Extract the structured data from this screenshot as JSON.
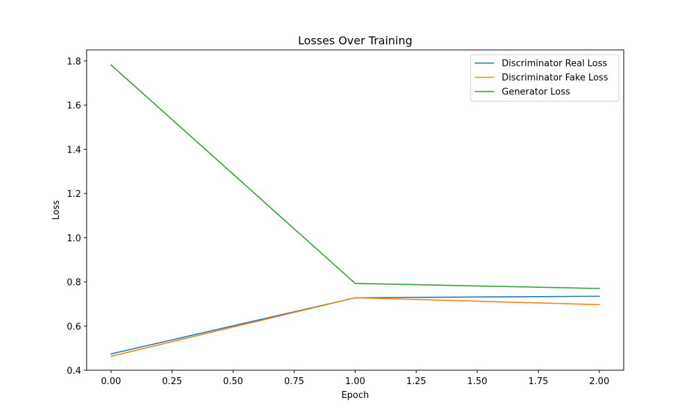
{
  "chart_data": {
    "type": "line",
    "title": "Losses Over Training",
    "xlabel": "Epoch",
    "ylabel": "Loss",
    "x": [
      0,
      1,
      2
    ],
    "xlim": [
      -0.1,
      2.1
    ],
    "ylim": [
      0.4,
      1.85
    ],
    "xticks": [
      "0.00",
      "0.25",
      "0.50",
      "0.75",
      "1.00",
      "1.25",
      "1.50",
      "1.75",
      "2.00"
    ],
    "xtick_values": [
      0,
      0.25,
      0.5,
      0.75,
      1.0,
      1.25,
      1.5,
      1.75,
      2.0
    ],
    "yticks": [
      "0.4",
      "0.6",
      "0.8",
      "1.0",
      "1.2",
      "1.4",
      "1.6",
      "1.8"
    ],
    "ytick_values": [
      0.4,
      0.6,
      0.8,
      1.0,
      1.2,
      1.4,
      1.6,
      1.8
    ],
    "grid": false,
    "legend_position": "top-right",
    "series": [
      {
        "name": "Discriminator Real Loss",
        "color": "#1f77b4",
        "values": [
          0.474,
          0.728,
          0.735
        ]
      },
      {
        "name": "Discriminator Fake Loss",
        "color": "#ff7f0e",
        "values": [
          0.463,
          0.728,
          0.697
        ]
      },
      {
        "name": "Generator Loss",
        "color": "#2ca02c",
        "values": [
          1.782,
          0.793,
          0.77
        ]
      }
    ]
  }
}
